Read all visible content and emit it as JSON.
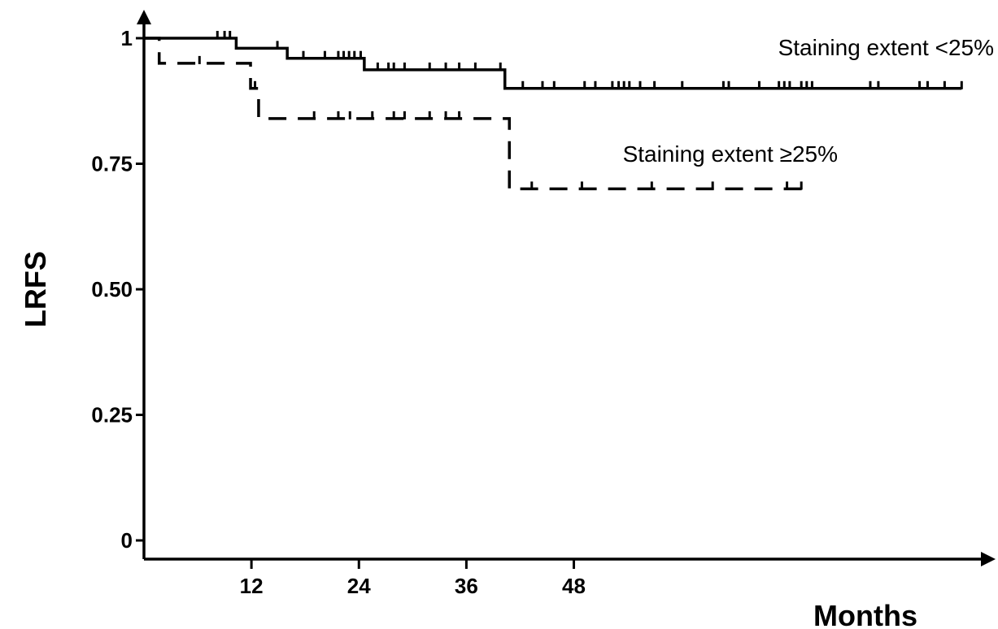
{
  "chart_data": {
    "type": "line",
    "subtype": "kaplan-meier",
    "xlabel": "Months",
    "ylabel": "LRFS",
    "xlim": [
      0,
      92
    ],
    "ylim": [
      0,
      1
    ],
    "x_ticks": [
      12,
      24,
      36,
      48
    ],
    "x_tick_labels": [
      "12",
      "24",
      "36",
      "48"
    ],
    "y_ticks": [
      0,
      0.25,
      0.5,
      0.75,
      1
    ],
    "y_tick_labels": [
      "0",
      "0.25",
      "0.50",
      "0.75",
      "1"
    ],
    "grid": false,
    "legend": "none",
    "series": [
      {
        "name": "Staining extent <25%",
        "style": "solid",
        "steps": [
          {
            "x": 0,
            "y": 1.0
          },
          {
            "x": 10.3,
            "y": 0.98
          },
          {
            "x": 16,
            "y": 0.96
          },
          {
            "x": 24.6,
            "y": 0.937
          },
          {
            "x": 40.3,
            "y": 0.9
          },
          {
            "x": 91.3,
            "y": 0.9
          }
        ],
        "censored": [
          {
            "x": 8.2,
            "y": 1.0
          },
          {
            "x": 9.0,
            "y": 1.0
          },
          {
            "x": 9.6,
            "y": 1.0
          },
          {
            "x": 14.9,
            "y": 0.98
          },
          {
            "x": 17.8,
            "y": 0.96
          },
          {
            "x": 20.2,
            "y": 0.96
          },
          {
            "x": 21.7,
            "y": 0.96
          },
          {
            "x": 22.3,
            "y": 0.96
          },
          {
            "x": 22.9,
            "y": 0.96
          },
          {
            "x": 23.5,
            "y": 0.96
          },
          {
            "x": 24.2,
            "y": 0.96
          },
          {
            "x": 26.1,
            "y": 0.937
          },
          {
            "x": 27.3,
            "y": 0.937
          },
          {
            "x": 27.9,
            "y": 0.937
          },
          {
            "x": 29.1,
            "y": 0.937
          },
          {
            "x": 31.9,
            "y": 0.937
          },
          {
            "x": 33.7,
            "y": 0.937
          },
          {
            "x": 35.2,
            "y": 0.937
          },
          {
            "x": 37.0,
            "y": 0.937
          },
          {
            "x": 39.8,
            "y": 0.937
          },
          {
            "x": 42.3,
            "y": 0.9
          },
          {
            "x": 44.5,
            "y": 0.9
          },
          {
            "x": 45.8,
            "y": 0.9
          },
          {
            "x": 49.2,
            "y": 0.9
          },
          {
            "x": 50.4,
            "y": 0.9
          },
          {
            "x": 52.3,
            "y": 0.9
          },
          {
            "x": 53.0,
            "y": 0.9
          },
          {
            "x": 53.6,
            "y": 0.9
          },
          {
            "x": 54.2,
            "y": 0.9
          },
          {
            "x": 55.4,
            "y": 0.9
          },
          {
            "x": 57.0,
            "y": 0.9
          },
          {
            "x": 60.1,
            "y": 0.9
          },
          {
            "x": 64.7,
            "y": 0.9
          },
          {
            "x": 65.3,
            "y": 0.9
          },
          {
            "x": 68.7,
            "y": 0.9
          },
          {
            "x": 70.9,
            "y": 0.9
          },
          {
            "x": 71.5,
            "y": 0.9
          },
          {
            "x": 72.1,
            "y": 0.9
          },
          {
            "x": 73.4,
            "y": 0.9
          },
          {
            "x": 74.0,
            "y": 0.9
          },
          {
            "x": 74.6,
            "y": 0.9
          },
          {
            "x": 81.1,
            "y": 0.9
          },
          {
            "x": 82.0,
            "y": 0.9
          },
          {
            "x": 86.6,
            "y": 0.9
          },
          {
            "x": 87.5,
            "y": 0.9
          },
          {
            "x": 89.4,
            "y": 0.9
          },
          {
            "x": 91.3,
            "y": 0.9
          }
        ]
      },
      {
        "name": "Staining extent ≥25%",
        "style": "dashed",
        "steps": [
          {
            "x": 0,
            "y": 1.0
          },
          {
            "x": 1.7,
            "y": 0.95
          },
          {
            "x": 11.9,
            "y": 0.9
          },
          {
            "x": 12.8,
            "y": 0.84
          },
          {
            "x": 40.8,
            "y": 0.7
          },
          {
            "x": 74.6,
            "y": 0.7
          }
        ],
        "censored": [
          {
            "x": 6.2,
            "y": 0.95
          },
          {
            "x": 12.4,
            "y": 0.9
          },
          {
            "x": 19.0,
            "y": 0.84
          },
          {
            "x": 21.7,
            "y": 0.84
          },
          {
            "x": 23.0,
            "y": 0.84
          },
          {
            "x": 25.5,
            "y": 0.84
          },
          {
            "x": 27.9,
            "y": 0.84
          },
          {
            "x": 29.1,
            "y": 0.84
          },
          {
            "x": 31.9,
            "y": 0.84
          },
          {
            "x": 33.7,
            "y": 0.84
          },
          {
            "x": 35.2,
            "y": 0.84
          },
          {
            "x": 43.3,
            "y": 0.7
          },
          {
            "x": 48.9,
            "y": 0.7
          },
          {
            "x": 56.7,
            "y": 0.7
          },
          {
            "x": 63.5,
            "y": 0.7
          },
          {
            "x": 71.8,
            "y": 0.7
          },
          {
            "x": 73.4,
            "y": 0.7
          }
        ]
      }
    ],
    "annotations": [
      {
        "text": "Staining extent <25%",
        "series": 0
      },
      {
        "text": "Staining extent ≥25%",
        "series": 1
      }
    ]
  }
}
